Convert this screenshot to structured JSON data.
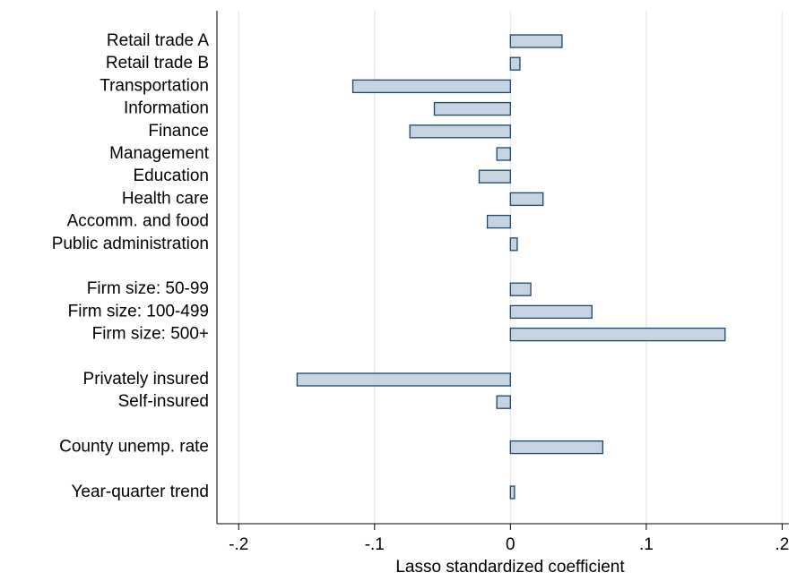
{
  "chart_data": {
    "type": "hbar",
    "xlabel": "Lasso standardized coefficient",
    "categories": [
      "Retail trade A",
      "Retail trade B",
      "Transportation",
      "Information",
      "Finance",
      "Management",
      "Education",
      "Health care",
      "Accomm. and food",
      "Public administration",
      null,
      "Firm size: 50-99",
      "Firm size: 100-499",
      "Firm size: 500+",
      null,
      "Privately insured",
      "Self-insured",
      null,
      "County unemp. rate",
      null,
      "Year-quarter trend"
    ],
    "values": [
      0.038,
      0.007,
      -0.116,
      -0.056,
      -0.074,
      -0.01,
      -0.023,
      0.024,
      -0.017,
      0.005,
      null,
      0.015,
      0.06,
      0.158,
      null,
      -0.157,
      -0.01,
      null,
      0.068,
      null,
      0.003
    ],
    "color": "#c6d3e0",
    "edge_color": "#1a476f",
    "xlim": [
      -0.216,
      0.205
    ],
    "xticks": [
      {
        "value": -0.2,
        "label": "-.2"
      },
      {
        "value": -0.1,
        "label": "-.1"
      },
      0,
      {
        "value": 0.1,
        "label": ".1"
      },
      {
        "value": 0.2,
        "label": ".2"
      }
    ],
    "grid": true
  }
}
